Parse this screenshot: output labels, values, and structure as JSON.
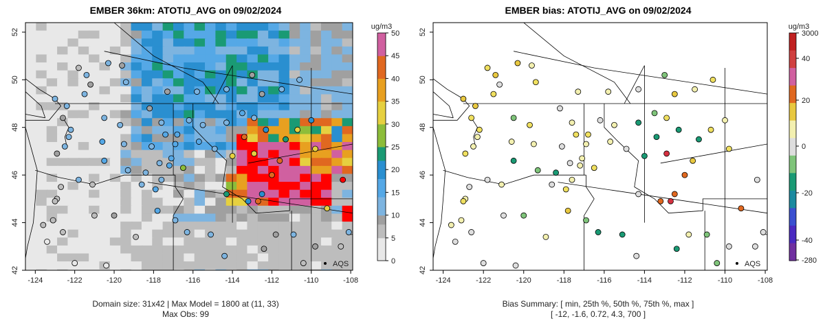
{
  "chart_data": [
    {
      "type": "heatmap",
      "title": "EMBER 36km: ATOTIJ_AVG on 09/02/2024",
      "x_ticks": [
        "-124",
        "-122",
        "-120",
        "-118",
        "-116",
        "-114",
        "-112",
        "-110",
        "-108"
      ],
      "y_ticks": [
        "42",
        "44",
        "46",
        "48",
        "50",
        "52"
      ],
      "xlim": [
        -124.5,
        -107.9
      ],
      "ylim": [
        42,
        52.4
      ],
      "colorbar_unit": "ug/m3",
      "colorbar_ticks": [
        "0",
        "5",
        "10",
        "15",
        "20",
        "25",
        "30",
        "35",
        "40",
        "45",
        "50"
      ],
      "legend_label": "AQS",
      "caption_line1": "Domain size: 31x42 | Max Model = 1800 at (11, 33)",
      "caption_line2": "Max Obs: 99"
    },
    {
      "type": "scatter",
      "title": "EMBER bias: ATOTIJ_AVG on 09/02/2024",
      "x_ticks": [
        "-124",
        "-122",
        "-120",
        "-118",
        "-116",
        "-114",
        "-112",
        "-110",
        "-108"
      ],
      "y_ticks": [
        "42",
        "44",
        "46",
        "48",
        "50",
        "52"
      ],
      "xlim": [
        -124.5,
        -107.9
      ],
      "ylim": [
        42,
        52.4
      ],
      "colorbar_unit": "ug/m3",
      "colorbar_ticks": [
        "3000",
        "40",
        "20",
        "0",
        "-20",
        "-40",
        "-280"
      ],
      "legend_label": "AQS",
      "caption_line1": "Bias Summary: [ min, 25th %, 50th %, 75th %, max ]",
      "caption_line2": "[ -12,   -1.6,   0.72,   4.3,   700 ]"
    }
  ]
}
